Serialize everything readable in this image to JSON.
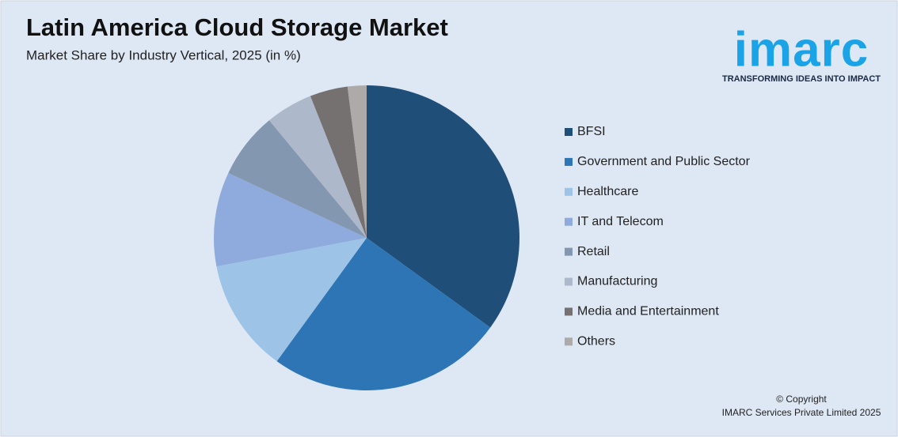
{
  "chart_data": {
    "type": "pie",
    "title": "Latin America Cloud Storage Market",
    "subtitle": "Market Share by Industry Vertical, 2025 (in %)",
    "categories": [
      "BFSI",
      "Government and Public Sector",
      "Healthcare",
      "IT and Telecom",
      "Retail",
      "Manufacturing",
      "Media and Entertainment",
      "Others"
    ],
    "values": [
      35,
      25,
      12,
      10,
      7,
      5,
      4,
      2
    ],
    "colors": [
      "#1f4e79",
      "#2e75b6",
      "#9dc3e6",
      "#8faadc",
      "#8497b0",
      "#adb9ca",
      "#767171",
      "#aeaaaa"
    ],
    "legend": "right"
  },
  "logo": {
    "name": "imarc",
    "tagline": "TRANSFORMING IDEAS INTO IMPACT"
  },
  "footer": {
    "copyright": "© Copyright",
    "company": "IMARC Services Private Limited 2025"
  }
}
